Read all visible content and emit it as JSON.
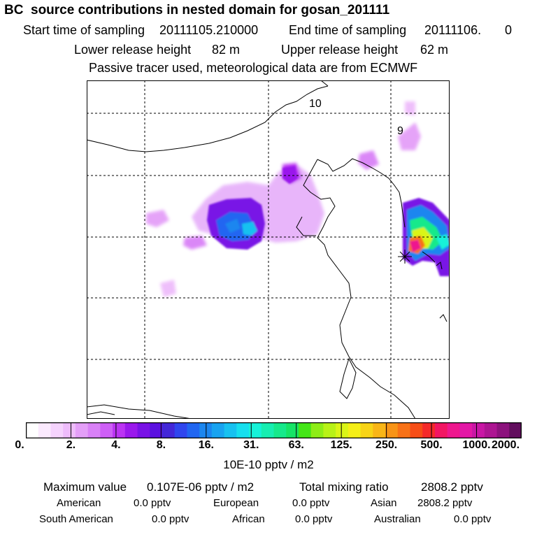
{
  "title": "BC  source contributions in nested domain for gosan_201111",
  "header": {
    "start_label": "Start time of sampling",
    "start_value": "20111105.210000",
    "end_label": "End time of sampling",
    "end_value": "20111106.",
    "end_suffix": "0",
    "lower_label": "Lower release height",
    "lower_value": "82 m",
    "upper_label": "Upper release height",
    "upper_value": "62 m",
    "note": "Passive tracer used, meteorological data are from ECMWF"
  },
  "map": {
    "labels": [
      "10",
      "9"
    ],
    "marker": "*"
  },
  "colorbar": {
    "ticks": [
      "0.",
      "2.",
      "4.",
      "8.",
      "16.",
      "31.",
      "63.",
      "125.",
      "250.",
      "500.",
      "1000.",
      "2000."
    ],
    "colors": [
      "#ffffff",
      "#fbeafe",
      "#f5d3fd",
      "#eebcfb",
      "#e49ff8",
      "#d981f7",
      "#ce5ff6",
      "#bb34f3",
      "#9a19ec",
      "#7912e6",
      "#5b11e0",
      "#4327d8",
      "#3046ee",
      "#2166f1",
      "#1b86ef",
      "#18a3f0",
      "#17c1f0",
      "#17dfee",
      "#16f2d8",
      "#17eeb1",
      "#16e98b",
      "#16e466",
      "#44e617",
      "#8eed17",
      "#b8f217",
      "#daf517",
      "#f5ef17",
      "#f8d417",
      "#f9b617",
      "#f89417",
      "#f87217",
      "#f64e17",
      "#f52a2a",
      "#f21663",
      "#ee178e",
      "#e317a6",
      "#c916a5",
      "#ad1592",
      "#8c127d",
      "#620e5e"
    ],
    "unit": "10E-10 pptv / m2"
  },
  "stats": {
    "max_label": "Maximum value",
    "max_value": "0.107E-06 pptv / m2",
    "total_label": "Total mixing ratio",
    "total_value": "2808.2 pptv",
    "regions": [
      {
        "name": "American",
        "value": "0.0 pptv"
      },
      {
        "name": "European",
        "value": "0.0 pptv"
      },
      {
        "name": "Asian",
        "value": "2808.2 pptv"
      },
      {
        "name": "South American",
        "value": "0.0 pptv"
      },
      {
        "name": "African",
        "value": "0.0 pptv"
      },
      {
        "name": "Australian",
        "value": "0.0 pptv"
      }
    ]
  }
}
